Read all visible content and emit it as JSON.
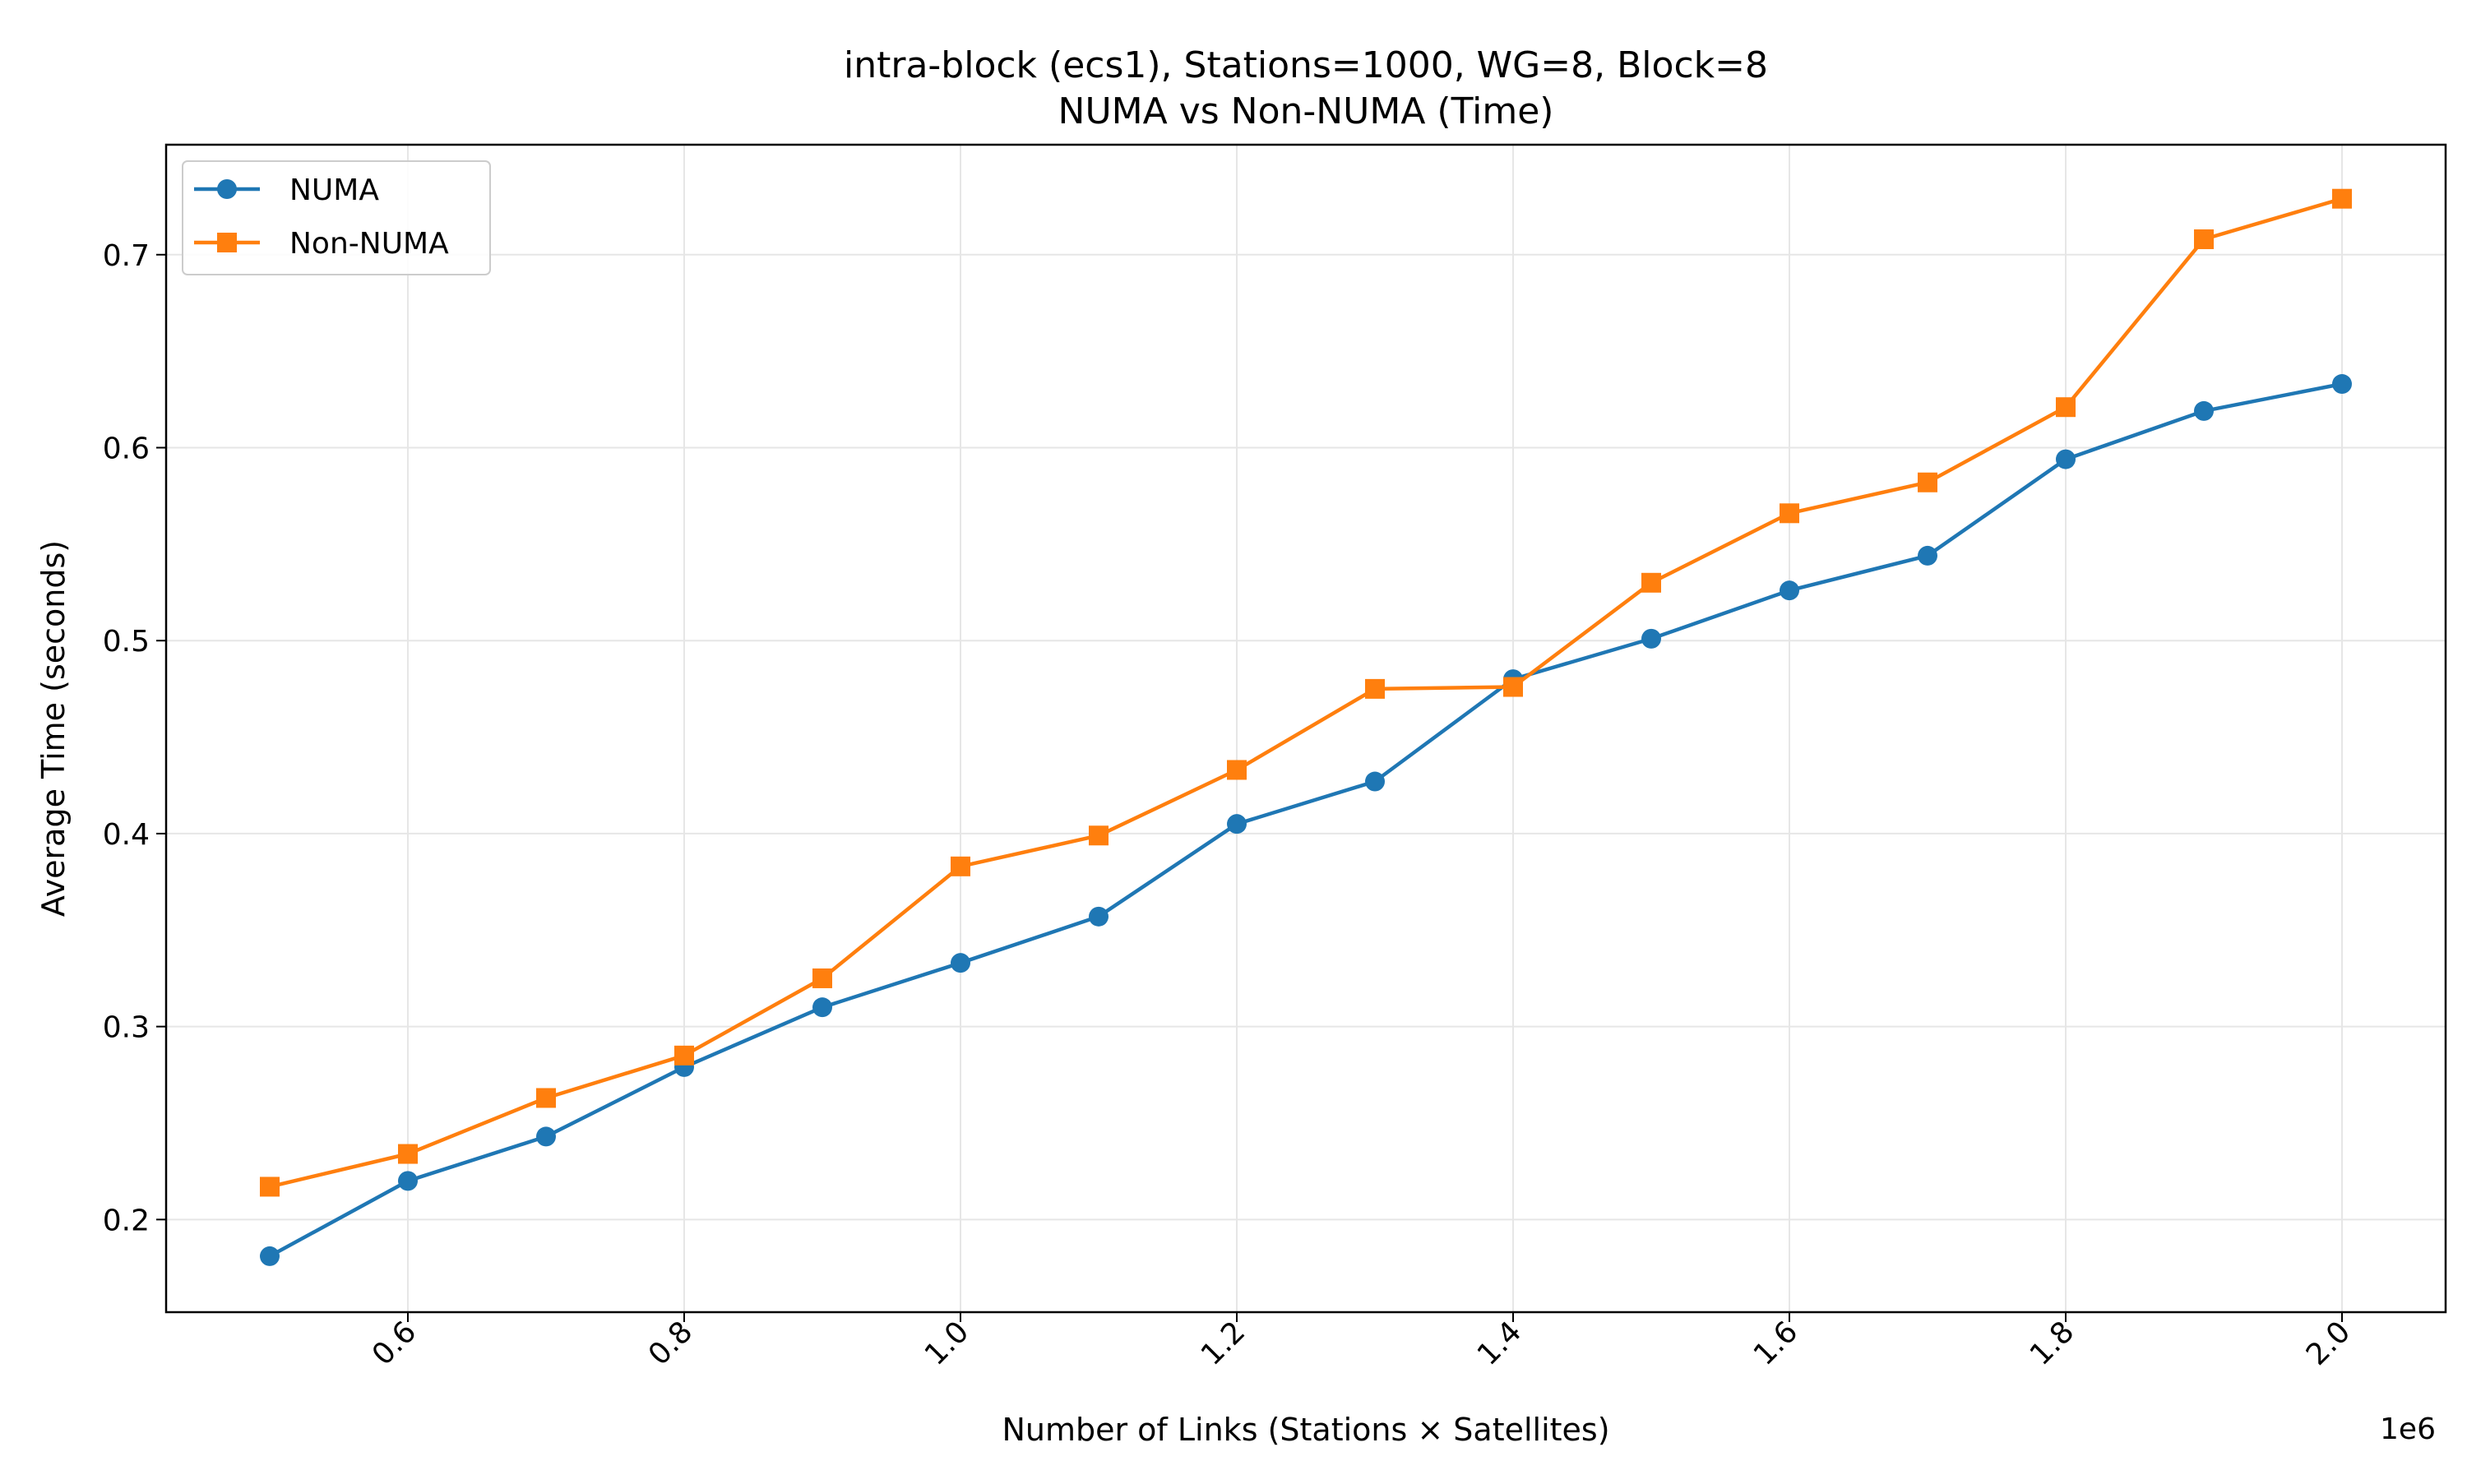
{
  "chart_data": {
    "type": "line",
    "title": "intra-block (ecs1), Stations=1000, WG=8, Block=8",
    "subtitle": "NUMA vs Non-NUMA (Time)",
    "xlabel": "Number of Links (Stations × Satellites)",
    "ylabel": "Average Time (seconds)",
    "x_offset_label": "1e6",
    "x_scale": 1000000,
    "x": [
      500000,
      600000,
      700000,
      800000,
      900000,
      1000000,
      1100000,
      1200000,
      1300000,
      1400000,
      1500000,
      1600000,
      1700000,
      1800000,
      1900000,
      2000000
    ],
    "xlim": [
      425000,
      2075000
    ],
    "ylim": [
      0.152,
      0.757
    ],
    "x_ticks": [
      600000,
      800000,
      1000000,
      1200000,
      1400000,
      1600000,
      1800000,
      2000000
    ],
    "x_tick_labels": [
      "0.6",
      "0.8",
      "1.0",
      "1.2",
      "1.4",
      "1.6",
      "1.8",
      "2.0"
    ],
    "y_ticks": [
      0.2,
      0.3,
      0.4,
      0.5,
      0.6,
      0.7
    ],
    "y_tick_labels": [
      "0.2",
      "0.3",
      "0.4",
      "0.5",
      "0.6",
      "0.7"
    ],
    "grid": true,
    "legend_position": "upper-left",
    "series": [
      {
        "name": "NUMA",
        "color": "#1f77b4",
        "marker": "circle",
        "values": [
          0.181,
          0.22,
          0.243,
          0.279,
          0.31,
          0.333,
          0.357,
          0.405,
          0.427,
          0.48,
          0.501,
          0.526,
          0.544,
          0.594,
          0.619,
          0.633
        ]
      },
      {
        "name": "Non-NUMA",
        "color": "#ff7f0e",
        "marker": "square",
        "values": [
          0.217,
          0.234,
          0.263,
          0.285,
          0.325,
          0.383,
          0.399,
          0.433,
          0.475,
          0.476,
          0.53,
          0.566,
          0.582,
          0.621,
          0.708,
          0.729
        ]
      }
    ]
  }
}
